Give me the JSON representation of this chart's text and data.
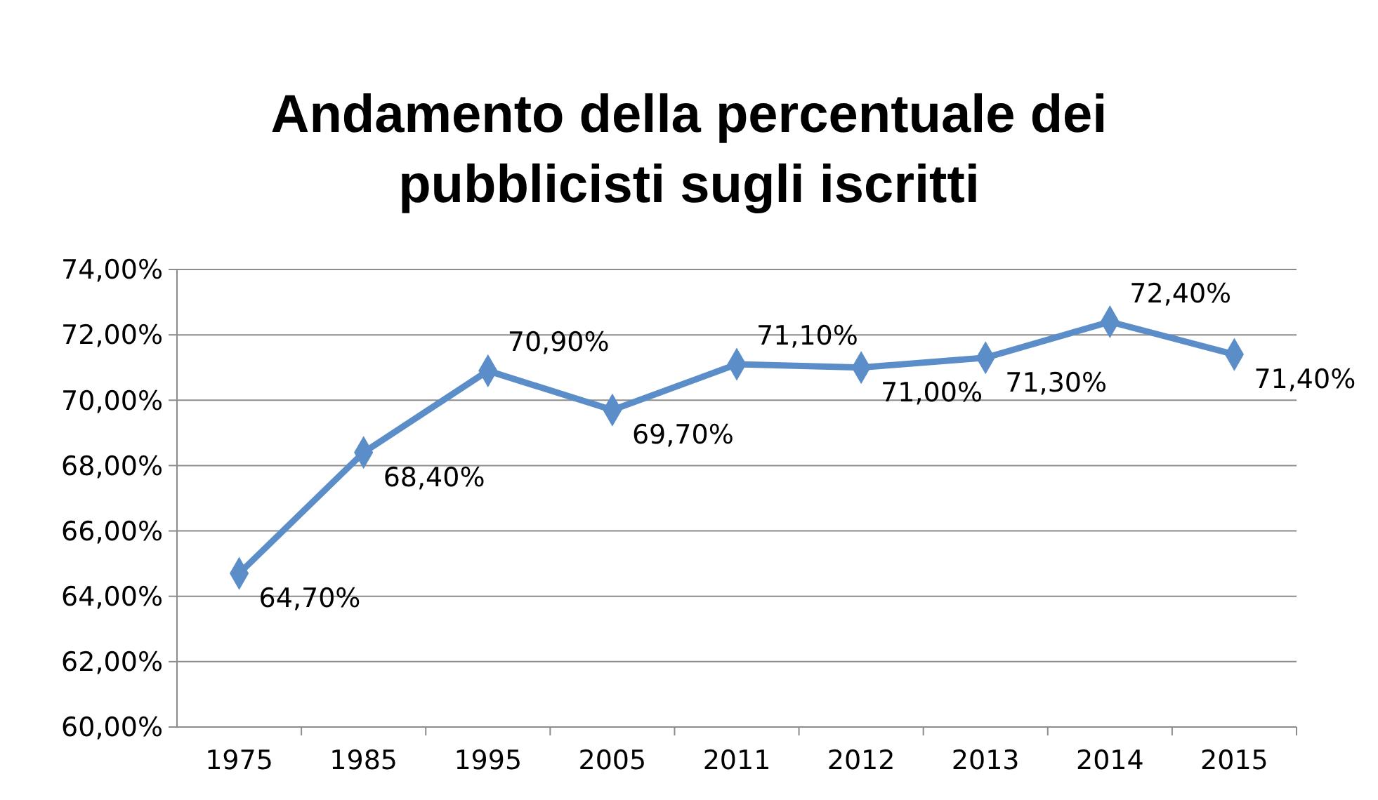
{
  "chart_data": {
    "type": "line",
    "title": "Andamento della percentuale dei\npubblicisti sugli iscritti",
    "categories": [
      "1975",
      "1985",
      "1995",
      "2005",
      "2011",
      "2012",
      "2013",
      "2014",
      "2015"
    ],
    "series": [
      {
        "color": "#5b8ec8",
        "values": [
          64.7,
          68.4,
          70.9,
          69.7,
          71.1,
          71.0,
          71.3,
          72.4,
          71.4
        ],
        "value_labels": [
          "64,70%",
          "68,40%",
          "70,90%",
          "69,70%",
          "71,10%",
          "71,00%",
          "71,30%",
          "72,40%",
          "71,40%"
        ]
      }
    ],
    "ylim": [
      60,
      74
    ],
    "yticks": [
      {
        "value": 60,
        "label": "60,00%"
      },
      {
        "value": 62,
        "label": "62,00%"
      },
      {
        "value": 64,
        "label": "64,00%"
      },
      {
        "value": 66,
        "label": "66,00%"
      },
      {
        "value": 68,
        "label": "68,00%"
      },
      {
        "value": 70,
        "label": "70,00%"
      },
      {
        "value": 72,
        "label": "72,00%"
      },
      {
        "value": 74,
        "label": "74,00%"
      }
    ],
    "grid": "y",
    "marker": "diamond",
    "line_style": "solid"
  }
}
